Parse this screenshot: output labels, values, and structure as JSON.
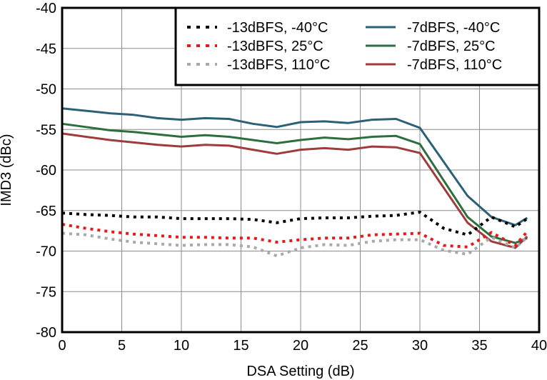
{
  "chart_data": {
    "type": "line",
    "title": "",
    "xlabel": "DSA Setting (dB)",
    "ylabel": "IMD3 (dBc)",
    "xlim": [
      0,
      40
    ],
    "ylim": [
      -80,
      -40
    ],
    "xticks": [
      0,
      5,
      10,
      15,
      20,
      25,
      30,
      35,
      40
    ],
    "yticks": [
      -80,
      -75,
      -70,
      -65,
      -60,
      -55,
      -50,
      -45,
      -40
    ],
    "grid": true,
    "legend_position": "top-right",
    "series": [
      {
        "name": "-13dBFS, -40°C",
        "color": "#000000",
        "style": "dotted",
        "x": [
          0,
          2,
          4,
          6,
          8,
          10,
          12,
          14,
          16,
          18,
          20,
          22,
          24,
          26,
          28,
          30,
          32,
          34,
          36,
          38,
          39
        ],
        "y": [
          -65.3,
          -65.5,
          -65.6,
          -65.8,
          -65.8,
          -66.0,
          -66.0,
          -66.0,
          -66.1,
          -66.5,
          -66.0,
          -65.9,
          -65.9,
          -65.7,
          -65.6,
          -65.2,
          -67.2,
          -68.0,
          -65.8,
          -67.0,
          -66.0
        ]
      },
      {
        "name": "-13dBFS, 25°C",
        "color": "#e8191a",
        "style": "dotted",
        "x": [
          0,
          2,
          4,
          6,
          8,
          10,
          12,
          14,
          16,
          18,
          20,
          22,
          24,
          26,
          28,
          30,
          32,
          34,
          36,
          38,
          39
        ],
        "y": [
          -66.7,
          -67.2,
          -67.6,
          -67.9,
          -68.1,
          -68.3,
          -68.3,
          -68.4,
          -68.4,
          -68.9,
          -68.6,
          -68.4,
          -68.4,
          -68.0,
          -67.9,
          -67.8,
          -69.3,
          -69.5,
          -67.7,
          -69.3,
          -67.6
        ]
      },
      {
        "name": "-13dBFS, 110°C",
        "color": "#a9a9a9",
        "style": "dotted",
        "x": [
          0,
          2,
          4,
          6,
          8,
          10,
          12,
          14,
          16,
          18,
          20,
          22,
          24,
          26,
          28,
          30,
          32,
          34,
          36,
          38,
          39
        ],
        "y": [
          -67.8,
          -68.0,
          -68.5,
          -68.9,
          -69.1,
          -69.3,
          -69.2,
          -69.2,
          -69.5,
          -70.6,
          -69.6,
          -69.2,
          -69.3,
          -68.8,
          -68.6,
          -68.6,
          -69.9,
          -70.4,
          -68.3,
          -69.6,
          -68.3
        ]
      },
      {
        "name": "-7dBFS, -40°C",
        "color": "#2a6177",
        "style": "solid",
        "x": [
          0,
          2,
          4,
          6,
          8,
          10,
          12,
          14,
          16,
          18,
          20,
          22,
          24,
          26,
          28,
          30,
          34,
          36,
          38,
          39
        ],
        "y": [
          -52.4,
          -52.7,
          -53.0,
          -53.2,
          -53.6,
          -53.8,
          -53.6,
          -53.7,
          -54.3,
          -54.7,
          -54.1,
          -54.0,
          -54.2,
          -53.8,
          -53.7,
          -54.8,
          -63.2,
          -65.8,
          -66.8,
          -65.9
        ]
      },
      {
        "name": "-7dBFS, 25°C",
        "color": "#2d6e3e",
        "style": "solid",
        "x": [
          0,
          2,
          4,
          6,
          8,
          10,
          12,
          14,
          16,
          18,
          20,
          22,
          24,
          26,
          28,
          30,
          34,
          36,
          38,
          39
        ],
        "y": [
          -54.3,
          -54.7,
          -55.1,
          -55.3,
          -55.6,
          -55.9,
          -55.7,
          -55.9,
          -56.3,
          -56.7,
          -56.3,
          -56.0,
          -56.2,
          -55.9,
          -55.8,
          -56.8,
          -65.8,
          -68.2,
          -69.0,
          -68.4
        ]
      },
      {
        "name": "-7dBFS, 110°C",
        "color": "#9e3b3b",
        "style": "solid",
        "x": [
          0,
          2,
          4,
          6,
          8,
          10,
          12,
          14,
          16,
          18,
          20,
          22,
          24,
          26,
          28,
          30,
          34,
          36,
          38,
          39
        ],
        "y": [
          -55.5,
          -55.9,
          -56.3,
          -56.6,
          -56.9,
          -57.1,
          -56.9,
          -57.0,
          -57.5,
          -58.0,
          -57.5,
          -57.3,
          -57.5,
          -57.1,
          -57.2,
          -57.9,
          -66.5,
          -68.8,
          -69.6,
          -68.2
        ]
      }
    ]
  }
}
